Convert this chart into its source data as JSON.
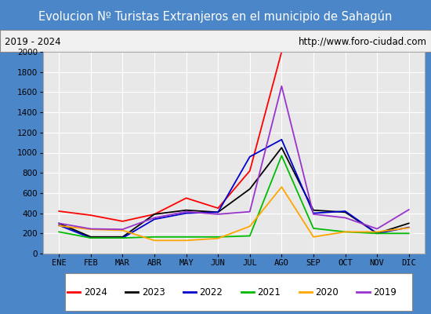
{
  "title": "Evolucion Nº Turistas Extranjeros en el municipio de Sahagún",
  "subtitle_left": "2019 - 2024",
  "subtitle_right": "http://www.foro-ciudad.com",
  "title_bg_color": "#4a86c8",
  "title_text_color": "#ffffff",
  "subtitle_bg_color": "#f0f0f0",
  "plot_bg_color": "#e8e8e8",
  "months": [
    "ENE",
    "FEB",
    "MAR",
    "ABR",
    "MAY",
    "JUN",
    "JUL",
    "AGO",
    "SEP",
    "OCT",
    "NOV",
    "DIC"
  ],
  "series": {
    "2024": {
      "color": "#ff0000",
      "data": [
        420,
        380,
        320,
        390,
        550,
        450,
        820,
        2000,
        null,
        null,
        null,
        null
      ]
    },
    "2023": {
      "color": "#000000",
      "data": [
        300,
        165,
        165,
        390,
        430,
        410,
        640,
        1050,
        430,
        410,
        200,
        300
      ]
    },
    "2022": {
      "color": "#0000cc",
      "data": [
        280,
        155,
        155,
        340,
        400,
        410,
        960,
        1130,
        400,
        420,
        200,
        260
      ]
    },
    "2021": {
      "color": "#00bb00",
      "data": [
        215,
        155,
        155,
        165,
        165,
        165,
        175,
        970,
        250,
        215,
        200,
        200
      ]
    },
    "2020": {
      "color": "#ffa500",
      "data": [
        275,
        240,
        230,
        130,
        130,
        150,
        270,
        660,
        165,
        215,
        215,
        255
      ]
    },
    "2019": {
      "color": "#9933cc",
      "data": [
        300,
        245,
        240,
        355,
        415,
        390,
        415,
        1660,
        390,
        355,
        245,
        435
      ]
    }
  },
  "ylim": [
    0,
    2000
  ],
  "yticks": [
    0,
    200,
    400,
    600,
    800,
    1000,
    1200,
    1400,
    1600,
    1800,
    2000
  ],
  "legend_order": [
    "2024",
    "2023",
    "2022",
    "2021",
    "2020",
    "2019"
  ],
  "grid_color": "#ffffff",
  "border_color": "#4a86c8",
  "outer_border_color": "#4a86c8",
  "legend_bg": "#ffffff"
}
